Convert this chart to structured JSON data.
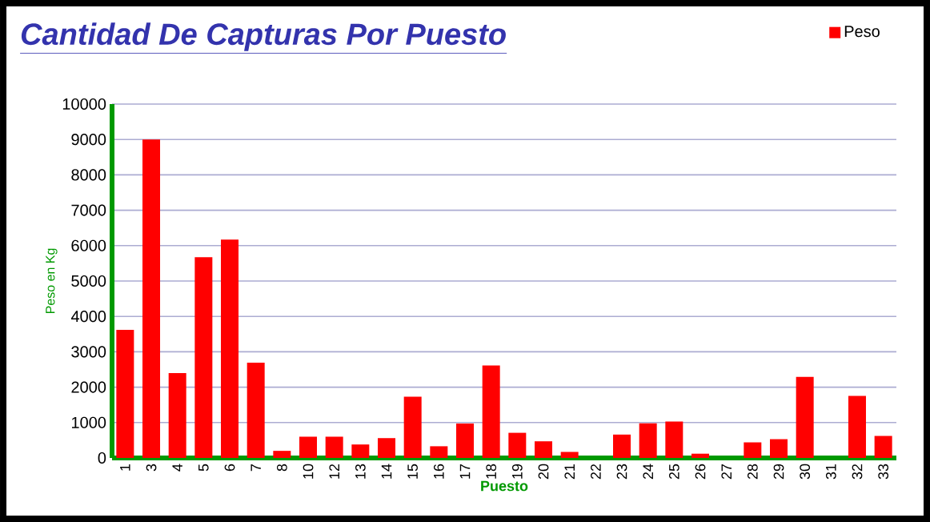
{
  "chart_data": {
    "type": "bar",
    "title": "Cantidad De Capturas Por Puesto",
    "xlabel": "Puesto",
    "ylabel": "Peso en Kg",
    "categories": [
      "1",
      "3",
      "4",
      "5",
      "6",
      "7",
      "8",
      "10",
      "12",
      "13",
      "14",
      "15",
      "16",
      "17",
      "18",
      "19",
      "20",
      "21",
      "22",
      "23",
      "24",
      "25",
      "26",
      "27",
      "28",
      "29",
      "30",
      "31",
      "32",
      "33"
    ],
    "series": [
      {
        "name": "Peso",
        "color": "#ff0000",
        "values": [
          3620,
          9000,
          2400,
          5670,
          6170,
          2690,
          200,
          600,
          600,
          380,
          560,
          1730,
          330,
          970,
          2610,
          710,
          470,
          170,
          0,
          660,
          980,
          1030,
          120,
          0,
          440,
          530,
          2290,
          0,
          1750,
          620
        ]
      }
    ],
    "ylim": [
      0,
      10000
    ],
    "yticks": [
      0,
      1000,
      2000,
      3000,
      4000,
      5000,
      6000,
      7000,
      8000,
      9000,
      10000
    ],
    "grid": "y",
    "legend": "top right"
  }
}
